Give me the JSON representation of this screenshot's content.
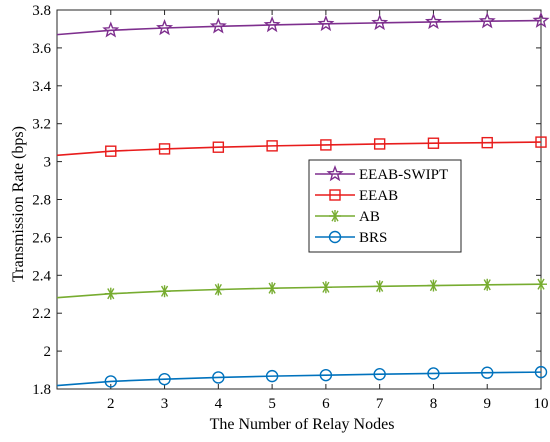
{
  "chart_data": {
    "type": "line",
    "xlabel": "The Number of Relay Nodes",
    "ylabel": "Transmission Rate (bps)",
    "xlim": [
      1,
      10
    ],
    "ylim": [
      1.8,
      3.8
    ],
    "xticks": [
      "2",
      "3",
      "4",
      "5",
      "6",
      "7",
      "8",
      "9",
      "10"
    ],
    "yticks": [
      "1.8",
      "2",
      "2.2",
      "2.4",
      "2.6",
      "2.8",
      "3",
      "3.2",
      "3.4",
      "3.6",
      "3.8"
    ],
    "grid": false,
    "legend_position": "center-right",
    "x": [
      1,
      2,
      3,
      4,
      5,
      6,
      7,
      8,
      9,
      10
    ],
    "series": [
      {
        "name": "EEAB-SWIPT",
        "color": "#7E2F8E",
        "marker": "star",
        "values": [
          3.67,
          3.693,
          3.705,
          3.714,
          3.721,
          3.727,
          3.732,
          3.737,
          3.741,
          3.744
        ]
      },
      {
        "name": "EEAB",
        "color": "#E81C1C",
        "marker": "square",
        "values": [
          3.033,
          3.055,
          3.067,
          3.076,
          3.083,
          3.088,
          3.093,
          3.097,
          3.1,
          3.103
        ]
      },
      {
        "name": "AB",
        "color": "#77AC30",
        "marker": "asterisk",
        "values": [
          2.282,
          2.303,
          2.316,
          2.325,
          2.332,
          2.337,
          2.342,
          2.346,
          2.35,
          2.353
        ]
      },
      {
        "name": "BRS",
        "color": "#0072BD",
        "marker": "circle",
        "values": [
          1.818,
          1.84,
          1.852,
          1.861,
          1.868,
          1.873,
          1.878,
          1.882,
          1.886,
          1.889
        ]
      }
    ]
  }
}
